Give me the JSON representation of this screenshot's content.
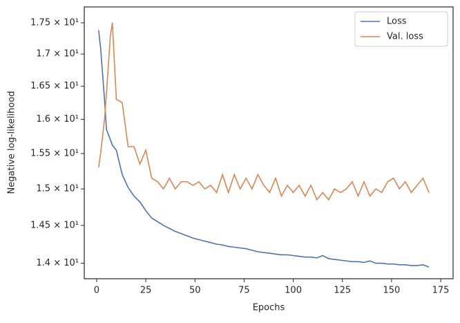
{
  "chart_data": {
    "type": "line",
    "xlabel": "Epochs",
    "ylabel": "Negative log-likelihood",
    "x": [
      1,
      2,
      4,
      5,
      7,
      8,
      10,
      13,
      16,
      19,
      22,
      25,
      28,
      31,
      34,
      37,
      40,
      43,
      46,
      49,
      52,
      55,
      58,
      61,
      64,
      67,
      70,
      73,
      76,
      79,
      82,
      85,
      88,
      91,
      94,
      97,
      100,
      103,
      106,
      109,
      112,
      115,
      118,
      121,
      124,
      127,
      130,
      133,
      136,
      139,
      142,
      145,
      148,
      151,
      154,
      157,
      160,
      163,
      166,
      169
    ],
    "series": [
      {
        "name": "Loss",
        "color": "#4c72b0",
        "values": [
          17.38,
          17.1,
          16.3,
          15.85,
          15.7,
          15.62,
          15.55,
          15.2,
          15.02,
          14.9,
          14.82,
          14.7,
          14.6,
          14.55,
          14.5,
          14.46,
          14.42,
          14.39,
          14.36,
          14.33,
          14.31,
          14.29,
          14.27,
          14.25,
          14.24,
          14.22,
          14.21,
          14.2,
          14.19,
          14.17,
          14.15,
          14.14,
          14.13,
          14.12,
          14.11,
          14.11,
          14.1,
          14.09,
          14.08,
          14.08,
          14.07,
          14.1,
          14.06,
          14.05,
          14.04,
          14.03,
          14.02,
          14.02,
          14.01,
          14.03,
          14.0,
          14.0,
          13.99,
          13.99,
          13.98,
          13.98,
          13.97,
          13.97,
          13.98,
          13.95
        ]
      },
      {
        "name": "Val. loss",
        "color": "#dd8452",
        "values": [
          15.3,
          15.5,
          16.0,
          16.4,
          17.3,
          17.5,
          16.3,
          16.25,
          15.6,
          15.6,
          15.35,
          15.55,
          15.15,
          15.1,
          15.0,
          15.15,
          15.0,
          15.1,
          15.1,
          15.05,
          15.1,
          15.0,
          15.05,
          14.95,
          15.2,
          14.95,
          15.2,
          15.0,
          15.15,
          15.0,
          15.2,
          15.05,
          14.95,
          15.15,
          14.9,
          15.05,
          14.95,
          15.05,
          14.9,
          15.05,
          14.85,
          14.95,
          14.85,
          15.0,
          14.95,
          15.0,
          15.1,
          14.9,
          15.1,
          14.9,
          15.0,
          14.95,
          15.1,
          15.15,
          15.0,
          15.1,
          14.95,
          15.05,
          15.15,
          14.95
        ]
      }
    ],
    "xlim": [
      -6.3,
      181.3
    ],
    "xticks": [
      0,
      25,
      50,
      75,
      100,
      125,
      150,
      175
    ],
    "ylim": [
      13.8,
      17.76
    ],
    "ylog": true,
    "yticks": [
      {
        "value": 14,
        "label": "1.4 × 10¹"
      },
      {
        "value": 14.5,
        "label": "1.45 × 10¹"
      },
      {
        "value": 15,
        "label": "1.5 × 10¹"
      },
      {
        "value": 15.5,
        "label": "1.55 × 10¹"
      },
      {
        "value": 16,
        "label": "1.6 × 10¹"
      },
      {
        "value": 16.5,
        "label": "1.65 × 10¹"
      },
      {
        "value": 17,
        "label": "1.7 × 10¹"
      },
      {
        "value": 17.5,
        "label": "1.75 × 10¹"
      }
    ],
    "legend": "upper-right"
  }
}
